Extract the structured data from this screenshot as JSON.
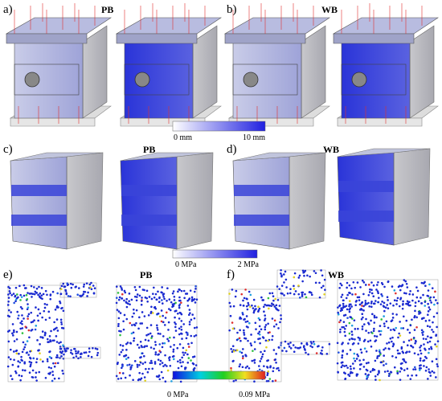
{
  "panels": [
    {
      "label": "a)",
      "tag": "PB"
    },
    {
      "label": "b)",
      "tag": "WB"
    },
    {
      "label": "c)",
      "tag": "PB"
    },
    {
      "label": "d)",
      "tag": "WB"
    },
    {
      "label": "e)",
      "tag": "PB"
    },
    {
      "label": "f)",
      "tag": "WB"
    }
  ],
  "colorbars": [
    {
      "min_label": "0 mm",
      "max_label": "10 mm"
    },
    {
      "min_label": "0 MPa",
      "max_label": "2 MPa"
    },
    {
      "min_label": "0 MPa",
      "max_label": "0.09 MPa"
    }
  ]
}
